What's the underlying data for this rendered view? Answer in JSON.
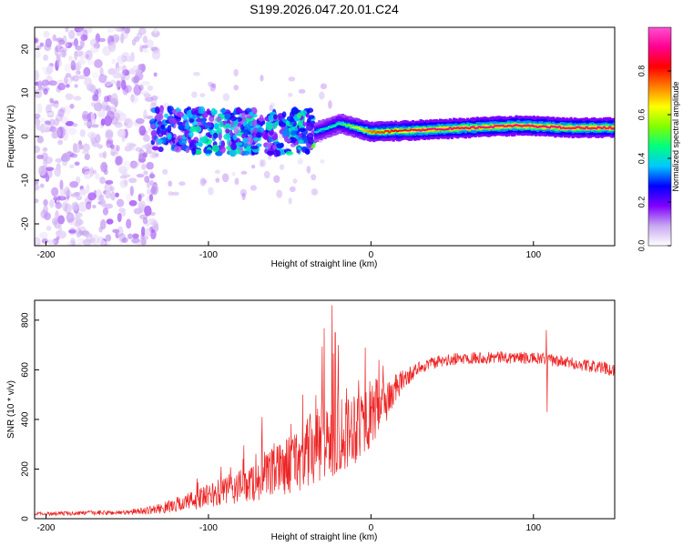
{
  "chart_data": [
    {
      "type": "heatmap",
      "title": "S199.2026.047.20.01.C24",
      "xlabel": "Height of straight line (km)",
      "ylabel": "Frequency (Hz)",
      "xlim": [
        -207,
        150
      ],
      "ylim": [
        -25,
        25
      ],
      "xticks": [
        -200,
        -100,
        0,
        100
      ],
      "xtick_labels": [
        "-200",
        "-100",
        "0",
        "100"
      ],
      "yticks": [
        -20,
        -10,
        0,
        10,
        20
      ],
      "ytick_labels": [
        "-20",
        "-10",
        "0",
        "10",
        "20"
      ],
      "colorbar": {
        "label": "Normalized spectral amplitude",
        "range": [
          0,
          1
        ],
        "ticks": [
          0.0,
          0.2,
          0.4,
          0.6,
          0.8
        ],
        "tick_labels": [
          "0.0",
          "0.2",
          "0.4",
          "0.6",
          "0.8"
        ],
        "stops": [
          "#ffffff",
          "#c8a8f0",
          "#8000ff",
          "#0000ff",
          "#00c8ff",
          "#00ff80",
          "#80ff00",
          "#ffff00",
          "#ff8000",
          "#ff0000",
          "#ff0090",
          "#ff50d0"
        ]
      },
      "band": {
        "description_x": [
          -135,
          -100,
          -60,
          -35,
          -20,
          0,
          30,
          60,
          90,
          120,
          150
        ],
        "center_freq_hz": [
          2,
          1,
          1,
          1,
          3,
          1,
          1.5,
          2,
          2.5,
          2,
          2
        ],
        "peak_amplitude": [
          0.25,
          0.35,
          0.3,
          0.4,
          0.45,
          0.75,
          0.9,
          0.9,
          0.9,
          0.9,
          0.9
        ]
      }
    },
    {
      "type": "line",
      "xlabel": "Height of straight line (km)",
      "ylabel": "SNR (10 * v/v)",
      "xlim": [
        -207,
        150
      ],
      "ylim": [
        0,
        880
      ],
      "xticks": [
        -200,
        -100,
        0,
        100
      ],
      "xtick_labels": [
        "-200",
        "-100",
        "0",
        "100"
      ],
      "yticks": [
        0,
        200,
        400,
        600,
        800
      ],
      "ytick_labels": [
        "0",
        "200",
        "400",
        "600",
        "800"
      ],
      "series": [
        {
          "name": "SNR",
          "color": "#ee2222",
          "trend_x": [
            -207,
            -150,
            -130,
            -100,
            -70,
            -50,
            -35,
            -25,
            -10,
            0,
            10,
            20,
            30,
            40,
            60,
            90,
            110,
            130,
            150
          ],
          "trend_y": [
            20,
            25,
            40,
            90,
            150,
            220,
            280,
            330,
            380,
            420,
            480,
            560,
            610,
            630,
            650,
            650,
            640,
            620,
            600
          ],
          "noise": [
            8,
            10,
            20,
            50,
            80,
            120,
            160,
            180,
            160,
            140,
            90,
            40,
            25,
            25,
            25,
            25,
            25,
            25,
            25
          ],
          "spikes": [
            {
              "x": -24,
              "y": 860
            },
            {
              "x": -22,
              "y": 750
            },
            {
              "x": -20,
              "y": 700
            },
            {
              "x": 5,
              "y": 640
            },
            {
              "x": 108,
              "y": 760
            },
            {
              "x": 108.5,
              "y": 430
            }
          ]
        }
      ]
    }
  ]
}
